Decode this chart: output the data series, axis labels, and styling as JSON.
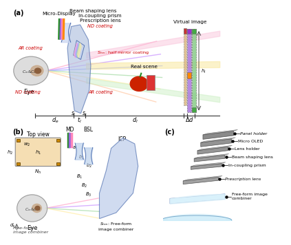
{
  "bg_color": "#ffffff",
  "panel_a": {
    "label": "(a)",
    "eye_label": "Eye",
    "cin_label": "$C_{in}$&$C_{ex}$",
    "ar_coating_left": "AR coating",
    "nd_coating_left": "ND coating",
    "ar_coating_right": "AR coating",
    "nd_coating_right": "ND coating",
    "half_mirror": "$S_{hm}$: half mirror coating",
    "micro_display": "Micro-Display",
    "beam_shaping": "Beam shaping lens",
    "in_coupling": "In-coupling prism",
    "prescription": "Prescription lens",
    "real_scene": "Real scene",
    "virtual_image": "Virtual image",
    "de": "$d_e$",
    "tl": "$t_l$",
    "dl": "$d_l$",
    "dd": "$\\Delta d$",
    "sl": "$s_l$",
    "sr": "$s_r$",
    "hi": "$h_i$"
  },
  "panel_b": {
    "label": "(b)",
    "top_view": "Top view",
    "md": "MD",
    "bsl": "BSL",
    "icp": "ICP",
    "eye_label": "Eye",
    "cin_label": "$C_{in}$&$C_{ex}$",
    "shm_label": "$S_{hm}$: Free-form\nimage combiner",
    "w2": "$w_2$",
    "h1": "$h_1$",
    "h2": "$h_2$",
    "nh": "$N_h$",
    "dr": "$d_r$",
    "a": "$a$",
    "b1": "$b_1$",
    "b2": "$b_2$",
    "B1": "$B_1$",
    "B2": "$B_2$",
    "B3": "$B_3$"
  },
  "panel_c": {
    "label": "(c)",
    "components": [
      "Panel holder",
      "Micro OLED",
      "Lens holder",
      "Beam shaping lens",
      "In-coupling prism",
      "Prescription lens",
      "Free-form image\ncombiner"
    ]
  },
  "colors": {
    "eye_fill": "#d8d8d8",
    "eye_edge": "#999999",
    "pupil": "#8B5E3C",
    "ray_pink": "#ffaacc",
    "ray_violet": "#cc99ff",
    "ray_blue": "#99aaff",
    "ray_green": "#aaddaa",
    "ray_yellow": "#ffeeaa",
    "ray_orange": "#ffccaa",
    "lens_fill": "#b0c0e0",
    "lens_edge": "#4466aa",
    "prism_fill": "#c8d4ee",
    "beam_pink": "#f9c0d8",
    "beam_yellow": "#f8e8a0",
    "beam_green": "#c8eec0",
    "vi_tan": "#ddbb88",
    "vi_purple": "#aa77dd",
    "vi_green": "#88cc88",
    "vi_purple_top": "#9933cc",
    "vi_red_top": "#cc3333",
    "vi_orange_mid": "#ff8800",
    "vi_green_top": "#44aa44",
    "apple_red": "#cc2200",
    "can_red": "#dd3333",
    "red_text": "#cc0000",
    "gray_comp": "#888888",
    "panel_bg": "#f5deb3",
    "icp_b_fill": "#b8c8e8",
    "blue_lens_fill": "#b0c8e8",
    "freeform_fill": "#c0e8f8"
  }
}
